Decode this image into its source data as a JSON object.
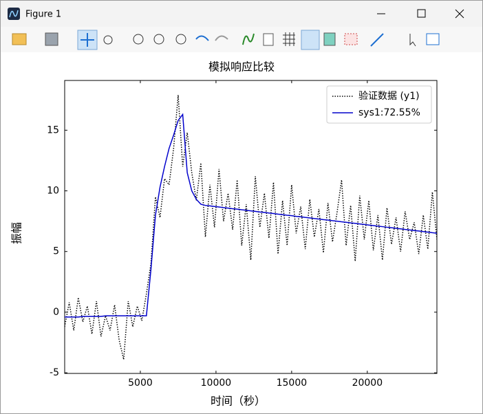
{
  "window": {
    "title": "Figure 1"
  },
  "chart_data": {
    "type": "line",
    "title": "模拟响应比较",
    "x_label": "时间（秒）",
    "y_label": "振幅",
    "x": [
      0,
      300,
      600,
      900,
      1200,
      1500,
      1800,
      2100,
      2400,
      2700,
      3000,
      3300,
      3600,
      3900,
      4200,
      4500,
      4800,
      5100,
      5400,
      5700,
      6000,
      6300,
      6600,
      6900,
      7200,
      7500,
      7800,
      8100,
      8400,
      8700,
      9000,
      9300,
      9600,
      9900,
      10200,
      10500,
      10800,
      11100,
      11400,
      11700,
      12000,
      12300,
      12600,
      12900,
      13200,
      13500,
      13800,
      14100,
      14400,
      14700,
      15000,
      15300,
      15600,
      15900,
      16200,
      16500,
      16800,
      17100,
      17400,
      17700,
      18000,
      18300,
      18600,
      18900,
      19200,
      19500,
      19800,
      20100,
      20400,
      20700,
      21000,
      21300,
      21600,
      21900,
      22200,
      22500,
      22800,
      23100,
      23400,
      23700,
      24000,
      24300,
      24600
    ],
    "series": [
      {
        "name": "验证数据 (y1)",
        "color": "#000000",
        "linestyle": "dotted",
        "values": [
          -1.2,
          0.8,
          -1.5,
          1.2,
          -0.8,
          0.5,
          -1.8,
          0.9,
          -2.0,
          -0.3,
          -1.5,
          0.6,
          -2.3,
          -3.9,
          0.9,
          -1.2,
          0.5,
          -0.7,
          1.5,
          4.0,
          9.5,
          7.8,
          11.0,
          10.5,
          13.5,
          17.9,
          12.0,
          14.8,
          11.5,
          9.2,
          12.3,
          6.2,
          10.5,
          7.0,
          11.8,
          7.5,
          9.8,
          6.8,
          10.9,
          5.5,
          8.9,
          4.3,
          11.2,
          7.0,
          9.8,
          6.1,
          10.7,
          4.8,
          9.2,
          5.5,
          10.5,
          6.5,
          8.7,
          5.2,
          9.3,
          6.2,
          8.5,
          4.9,
          9.0,
          5.8,
          8.2,
          10.9,
          5.5,
          8.8,
          4.2,
          9.6,
          6.0,
          9.2,
          5.1,
          8.0,
          4.3,
          8.6,
          5.6,
          7.8,
          5.0,
          8.3,
          6.0,
          7.4,
          4.8,
          8.0,
          5.2,
          9.9,
          6.0
        ]
      },
      {
        "name": "sys1:72.55%",
        "color": "#0000cc",
        "linestyle": "solid",
        "values": [
          -0.4,
          -0.4,
          -0.4,
          -0.4,
          -0.35,
          -0.35,
          -0.35,
          -0.35,
          -0.35,
          -0.3,
          -0.3,
          -0.3,
          -0.3,
          -0.3,
          -0.3,
          -0.3,
          -0.3,
          -0.3,
          -0.3,
          3.5,
          8.0,
          10.3,
          12.0,
          13.5,
          14.6,
          15.8,
          16.3,
          11.5,
          10.0,
          9.3,
          8.9,
          8.8,
          8.76,
          8.71,
          8.67,
          8.62,
          8.58,
          8.53,
          8.49,
          8.44,
          8.4,
          8.35,
          8.31,
          8.26,
          8.22,
          8.17,
          8.13,
          8.08,
          8.04,
          7.99,
          7.95,
          7.9,
          7.86,
          7.81,
          7.77,
          7.72,
          7.68,
          7.63,
          7.59,
          7.54,
          7.5,
          7.45,
          7.41,
          7.36,
          7.32,
          7.27,
          7.23,
          7.18,
          7.14,
          7.09,
          7.05,
          7.0,
          6.96,
          6.91,
          6.87,
          6.82,
          6.78,
          6.73,
          6.69,
          6.64,
          6.6,
          6.55,
          6.51
        ]
      }
    ],
    "xlim": [
      0,
      24600
    ],
    "ylim": [
      -5.05,
      19.1
    ],
    "xticks": [
      5000,
      10000,
      15000,
      20000
    ],
    "yticks": [
      -5,
      0,
      5,
      10,
      15
    ],
    "legend": "upper right"
  }
}
